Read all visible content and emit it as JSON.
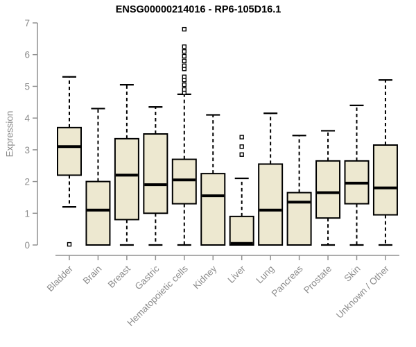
{
  "title": "ENSG00000214016 - RP6-105D16.1",
  "chart_data": {
    "type": "boxplot",
    "title": "ENSG00000214016 - RP6-105D16.1",
    "xlabel": "",
    "ylabel": "Expression",
    "ylim": [
      0,
      7
    ],
    "yticks": [
      0,
      1,
      2,
      3,
      4,
      5,
      6,
      7
    ],
    "grid": false,
    "legend_position": "none",
    "categories": [
      "Bladder",
      "Brain",
      "Breast",
      "Gastric",
      "Hematopoietic cells",
      "Kidney",
      "Liver",
      "Lung",
      "Pancreas",
      "Prostate",
      "Skin",
      "Unknown / Other"
    ],
    "series": [
      {
        "category": "Bladder",
        "whisker_low": 1.2,
        "q1": 2.2,
        "median": 3.1,
        "q3": 3.7,
        "whisker_high": 5.3,
        "outliers": [
          0.02
        ]
      },
      {
        "category": "Brain",
        "whisker_low": 0,
        "q1": 0,
        "median": 1.1,
        "q3": 2.0,
        "whisker_high": 4.3,
        "outliers": []
      },
      {
        "category": "Breast",
        "whisker_low": 0,
        "q1": 0.8,
        "median": 2.2,
        "q3": 3.35,
        "whisker_high": 5.05,
        "outliers": []
      },
      {
        "category": "Gastric",
        "whisker_low": 0,
        "q1": 1.0,
        "median": 1.9,
        "q3": 3.5,
        "whisker_high": 4.35,
        "outliers": []
      },
      {
        "category": "Hematopoietic cells",
        "whisker_low": 0,
        "q1": 1.3,
        "median": 2.05,
        "q3": 2.7,
        "whisker_high": 4.75,
        "outliers": [
          4.8,
          4.9,
          5.05,
          5.2,
          5.3,
          5.55,
          5.65,
          5.8,
          5.95,
          6.1,
          6.25,
          6.8
        ]
      },
      {
        "category": "Kidney",
        "whisker_low": 0,
        "q1": 0,
        "median": 1.55,
        "q3": 2.25,
        "whisker_high": 4.1,
        "outliers": []
      },
      {
        "category": "Liver",
        "whisker_low": 0,
        "q1": 0,
        "median": 0.05,
        "q3": 0.9,
        "whisker_high": 2.1,
        "outliers": [
          2.85,
          3.1,
          3.4
        ]
      },
      {
        "category": "Lung",
        "whisker_low": 0,
        "q1": 0,
        "median": 1.1,
        "q3": 2.55,
        "whisker_high": 4.15,
        "outliers": []
      },
      {
        "category": "Pancreas",
        "whisker_low": 0,
        "q1": 0,
        "median": 1.35,
        "q3": 1.65,
        "whisker_high": 3.45,
        "outliers": []
      },
      {
        "category": "Prostate",
        "whisker_low": 0,
        "q1": 0.85,
        "median": 1.65,
        "q3": 2.65,
        "whisker_high": 3.6,
        "outliers": []
      },
      {
        "category": "Skin",
        "whisker_low": 0,
        "q1": 1.3,
        "median": 1.95,
        "q3": 2.65,
        "whisker_high": 4.4,
        "outliers": []
      },
      {
        "category": "Unknown / Other",
        "whisker_low": 0,
        "q1": 0.95,
        "median": 1.8,
        "q3": 3.15,
        "whisker_high": 5.2,
        "outliers": []
      }
    ],
    "colors": {
      "box_fill": "#EDE8D0",
      "box_border": "#000000",
      "median_line": "#000000",
      "whisker": "#000000",
      "axis": "#919191",
      "tick_label": "#8C8C8C",
      "title": "#000000",
      "background": "#FFFFFF"
    }
  }
}
